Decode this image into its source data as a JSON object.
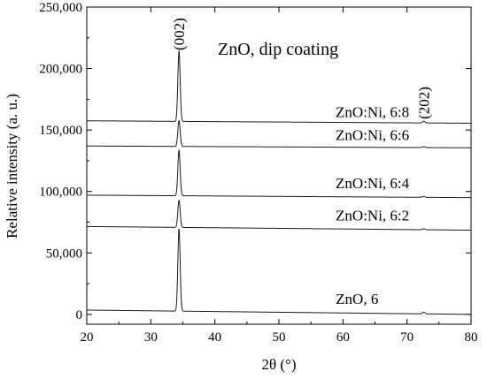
{
  "chart_data": {
    "type": "line",
    "title": "ZnO, dip coating",
    "xlabel": "2θ (°)",
    "ylabel": "Relative intensity (a. u.)",
    "xlim": [
      20,
      80
    ],
    "ylim": [
      -8000,
      250000
    ],
    "x_ticks": [
      20,
      30,
      40,
      50,
      60,
      70,
      80
    ],
    "y_ticks": [
      0,
      50000,
      100000,
      150000,
      200000,
      250000
    ],
    "x_tick_labels": [
      "20",
      "30",
      "40",
      "50",
      "60",
      "70",
      "80"
    ],
    "y_tick_labels": [
      "0",
      "50,000",
      "100,000",
      "150,000",
      "200,000",
      "250,000"
    ],
    "grid": false,
    "legend": "none",
    "line_color": "#1a1a1a",
    "peak_annotations": [
      {
        "label": "(002)",
        "x": 34.4,
        "y": 228000
      },
      {
        "label": "(202)",
        "x": 72.6,
        "y": 172000
      }
    ],
    "series": [
      {
        "name": "ZnO, 6",
        "baseline_start": 3500,
        "baseline_end": 0,
        "peaks": [
          {
            "x": 34.4,
            "height": 67000
          },
          {
            "x": 72.6,
            "height": 1500
          }
        ],
        "label_x": 62.2,
        "label_y": 8500
      },
      {
        "name": "ZnO:Ni, 6:2",
        "baseline_start": 71500,
        "baseline_end": 68500,
        "peaks": [
          {
            "x": 34.4,
            "height": 22000
          },
          {
            "x": 72.6,
            "height": 800
          }
        ],
        "label_x": 64.6,
        "label_y": 76500
      },
      {
        "name": "ZnO:Ni, 6:4",
        "baseline_start": 97000,
        "baseline_end": 95000,
        "peaks": [
          {
            "x": 34.4,
            "height": 37000
          },
          {
            "x": 72.6,
            "height": 800
          }
        ],
        "label_x": 64.6,
        "label_y": 102500
      },
      {
        "name": "ZnO:Ni, 6:6",
        "baseline_start": 137000,
        "baseline_end": 135500,
        "peaks": [
          {
            "x": 34.4,
            "height": 21000
          },
          {
            "x": 72.6,
            "height": 800
          }
        ],
        "label_x": 64.6,
        "label_y": 142000
      },
      {
        "name": "ZnO:Ni, 6:8",
        "baseline_start": 157500,
        "baseline_end": 155500,
        "peaks": [
          {
            "x": 34.4,
            "height": 57000
          },
          {
            "x": 72.6,
            "height": 1500
          }
        ],
        "label_x": 64.6,
        "label_y": 160500
      }
    ]
  }
}
